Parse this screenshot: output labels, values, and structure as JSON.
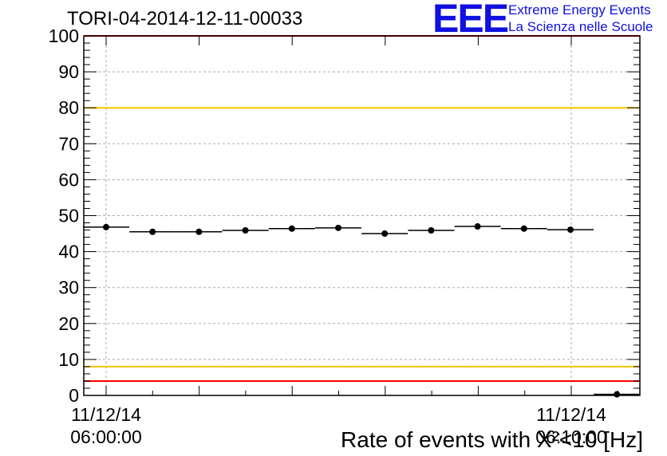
{
  "title": "TORI-04-2014-12-11-00033",
  "logo": {
    "mark": "EEE",
    "line1": "Extreme Energy Events",
    "line2": "La Scienza nelle Scuole",
    "color": "#1010e0"
  },
  "chart_data": {
    "type": "scatter",
    "title": "TORI-04-2014-12-11-00033",
    "ylabel": "Rate of events with X²<10 [Hz]",
    "ylim": [
      0,
      100
    ],
    "yticks": [
      0,
      10,
      20,
      30,
      40,
      50,
      60,
      70,
      80,
      90,
      100
    ],
    "x_tick_labels": [
      {
        "line1": "11/12/14",
        "line2": "06:00:00"
      },
      {
        "line1": "11/12/14",
        "line2": "06:10:00"
      }
    ],
    "grid": true,
    "series": [
      {
        "points": [
          {
            "x": 0,
            "y": 46.8
          },
          {
            "x": 1,
            "y": 45.5
          },
          {
            "x": 2,
            "y": 45.5
          },
          {
            "x": 3,
            "y": 45.9
          },
          {
            "x": 4,
            "y": 46.4
          },
          {
            "x": 5,
            "y": 46.6
          },
          {
            "x": 6,
            "y": 45.0
          },
          {
            "x": 7,
            "y": 45.9
          },
          {
            "x": 8,
            "y": 47.0
          },
          {
            "x": 9,
            "y": 46.4
          },
          {
            "x": 10,
            "y": 46.1
          },
          {
            "x": 11,
            "y": 0.3
          }
        ]
      }
    ],
    "reference_lines": [
      {
        "y": 100,
        "color": "#ff0000"
      },
      {
        "y": 80,
        "color": "#f5c400"
      },
      {
        "y": 8,
        "color": "#f5c400"
      },
      {
        "y": 4,
        "color": "#ff0000"
      }
    ]
  }
}
